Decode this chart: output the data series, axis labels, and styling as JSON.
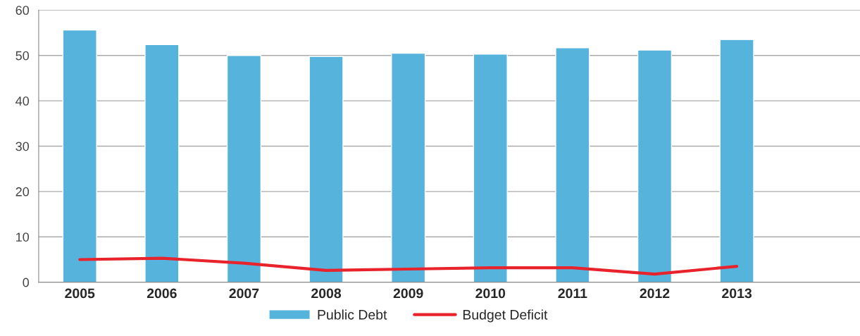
{
  "chart_data": {
    "type": "bar",
    "categories": [
      "2005",
      "2006",
      "2007",
      "2008",
      "2009",
      "2010",
      "2011",
      "2012",
      "2013",
      null
    ],
    "series": [
      {
        "name": "Public Debt",
        "color": "#56b4dc",
        "values": [
          55.6,
          52.4,
          50.0,
          49.8,
          50.5,
          50.3,
          51.7,
          51.2,
          53.5,
          null
        ]
      },
      {
        "name": "Budget Deficit",
        "type": "line",
        "color": "#e8232b",
        "values": [
          5.0,
          5.3,
          4.2,
          2.6,
          2.9,
          3.2,
          3.2,
          1.8,
          3.5,
          null
        ]
      }
    ],
    "ylim": [
      0,
      60
    ],
    "yticks": [
      0,
      10,
      20,
      30,
      40,
      50,
      60
    ],
    "grid": "y",
    "legend": "bottom",
    "marker": "none",
    "line_style": "solid"
  }
}
